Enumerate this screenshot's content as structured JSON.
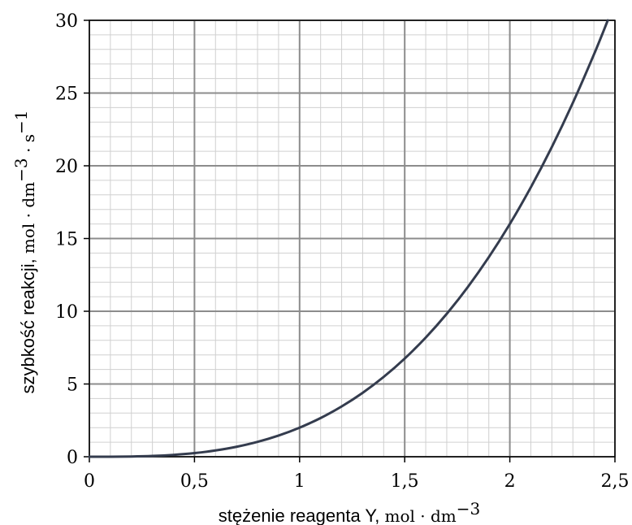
{
  "chart_data": {
    "type": "line",
    "title": "",
    "xlabel_text": "stężenie reagenta Y,",
    "xlabel_unit": "mol · dm",
    "xlabel_exp": "−3",
    "ylabel_text": "szybkość reakcji,",
    "ylabel_unit": "mol · dm",
    "ylabel_exp": "−3",
    "ylabel_unit2": " · s",
    "ylabel_exp2": "−1",
    "xlim": [
      0,
      2.5
    ],
    "ylim": [
      0,
      30
    ],
    "x_ticks": [
      0,
      0.5,
      1,
      1.5,
      2,
      2.5
    ],
    "x_tick_labels": [
      "0",
      "0,5",
      "1",
      "1,5",
      "2",
      "2,5"
    ],
    "y_ticks": [
      0,
      5,
      10,
      15,
      20,
      25,
      30
    ],
    "y_tick_labels": [
      "0",
      "5",
      "10",
      "15",
      "20",
      "25",
      "30"
    ],
    "x_minor_step": 0.1,
    "y_minor_step": 1,
    "grid": true,
    "legend": "none",
    "line_color": "#343c4e",
    "major_grid_color": "#8c8c8c",
    "minor_grid_color": "#d0d0d0",
    "series": [
      {
        "x": [
          0,
          0.1,
          0.2,
          0.3,
          0.4,
          0.5,
          0.6,
          0.7,
          0.8,
          0.9,
          1.0,
          1.1,
          1.2,
          1.3,
          1.4,
          1.5,
          1.6,
          1.7,
          1.8,
          1.9,
          2.0,
          2.1,
          2.2,
          2.3,
          2.4,
          2.466
        ],
        "y": [
          0,
          0.002,
          0.016,
          0.054,
          0.128,
          0.25,
          0.432,
          0.686,
          1.024,
          1.458,
          2.0,
          2.662,
          3.456,
          4.394,
          5.488,
          6.75,
          8.192,
          9.826,
          11.664,
          13.718,
          16.0,
          18.522,
          21.296,
          24.334,
          27.648,
          30.0
        ]
      }
    ]
  }
}
